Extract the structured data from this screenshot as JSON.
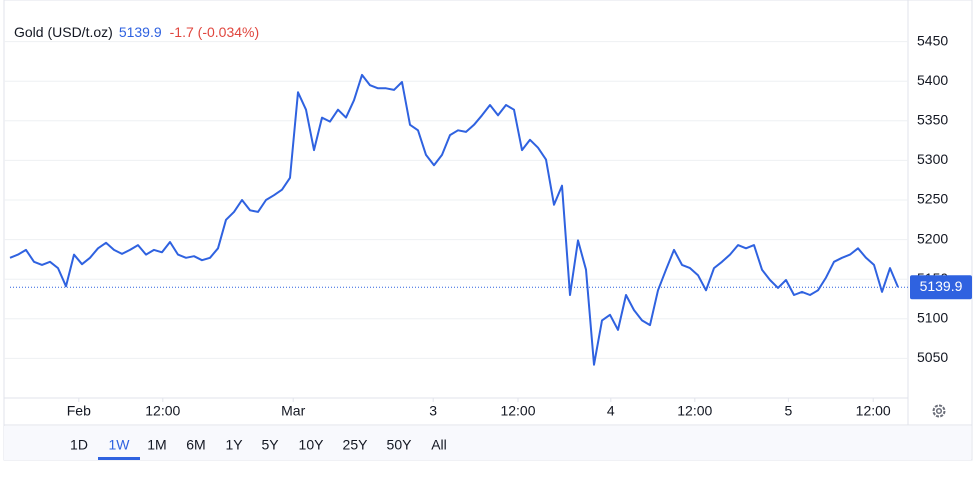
{
  "chart_data": {
    "type": "line",
    "title": "Gold (USD/t.oz)",
    "last_value": 5139.9,
    "change": "-1.7 (-0.034%)",
    "color": "#2f62e0",
    "change_color": "#e0463e",
    "values": [
      5177,
      5181,
      5187,
      5172,
      5168,
      5172,
      5164,
      5141,
      5181,
      5169,
      5177,
      5189,
      5196,
      5187,
      5182,
      5187,
      5193,
      5181,
      5187,
      5184,
      5197,
      5181,
      5177,
      5179,
      5174,
      5177,
      5189,
      5225,
      5235,
      5250,
      5237,
      5235,
      5250,
      5256,
      5263,
      5278,
      5386,
      5364,
      5313,
      5354,
      5349,
      5364,
      5354,
      5376,
      5408,
      5395,
      5391,
      5391,
      5389,
      5399,
      5345,
      5338,
      5307,
      5294,
      5307,
      5332,
      5338,
      5336,
      5345,
      5357,
      5370,
      5357,
      5370,
      5364,
      5313,
      5326,
      5316,
      5301,
      5244,
      5268,
      5130,
      5199,
      5162,
      5042,
      5098,
      5105,
      5086,
      5130,
      5111,
      5098,
      5092,
      5136,
      5162,
      5187,
      5168,
      5164,
      5155,
      5136,
      5164,
      5172,
      5181,
      5193,
      5189,
      5193,
      5162,
      5149,
      5139,
      5149,
      5130,
      5134,
      5130,
      5136,
      5152,
      5172,
      5177,
      5181,
      5189,
      5177,
      5168,
      5134,
      5164,
      5140
    ],
    "xlim": [
      0,
      112
    ],
    "xticks": [
      {
        "value": 8.6,
        "label": "Feb"
      },
      {
        "value": 19.1,
        "label": "12:00"
      },
      {
        "value": 35.4,
        "label": "Mar"
      },
      {
        "value": 52.9,
        "label": "3"
      },
      {
        "value": 63.5,
        "label": "12:00"
      },
      {
        "value": 75.1,
        "label": "4"
      },
      {
        "value": 85.6,
        "label": "12:00"
      },
      {
        "value": 97.3,
        "label": "5"
      },
      {
        "value": 107.9,
        "label": "12:00"
      }
    ],
    "ylim": [
      5000,
      5500
    ],
    "yticks": [
      5050,
      5100,
      5150,
      5200,
      5250,
      5300,
      5350,
      5400,
      5450
    ],
    "grid": true,
    "ranges": [
      "1D",
      "1W",
      "1M",
      "6M",
      "1Y",
      "5Y",
      "10Y",
      "25Y",
      "50Y",
      "All"
    ],
    "selected_range": "1W"
  }
}
